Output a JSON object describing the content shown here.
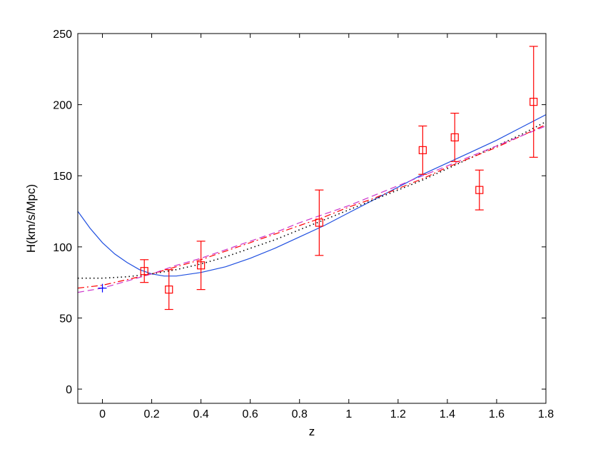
{
  "chart_data": {
    "type": "line",
    "title": "",
    "xlabel": "z",
    "ylabel": "H(km/s/Mpc)",
    "xlim": [
      -0.1,
      1.8
    ],
    "ylim": [
      -10,
      250
    ],
    "x_ticks": [
      0,
      0.2,
      0.4,
      0.6,
      0.8,
      1,
      1.2,
      1.4,
      1.6,
      1.8
    ],
    "x_tick_labels": [
      "0",
      "0.2",
      "0.4",
      "0.6",
      "0.8",
      "1",
      "1.2",
      "1.4",
      "1.6",
      "1.8"
    ],
    "y_ticks": [
      0,
      50,
      100,
      150,
      200,
      250
    ],
    "y_tick_labels": [
      "0",
      "50",
      "100",
      "150",
      "200",
      "250"
    ],
    "grid": false,
    "legend": "none",
    "observations": {
      "color": "#ff0000",
      "marker": "square",
      "points": [
        {
          "z": 0.17,
          "H": 83,
          "err": 8
        },
        {
          "z": 0.27,
          "H": 70,
          "err": 14
        },
        {
          "z": 0.4,
          "H": 87,
          "err": 17
        },
        {
          "z": 0.88,
          "H": 117,
          "err": 23
        },
        {
          "z": 1.3,
          "H": 168,
          "err": 17
        },
        {
          "z": 1.43,
          "H": 177,
          "err": 17
        },
        {
          "z": 1.53,
          "H": 140,
          "err": 14
        },
        {
          "z": 1.75,
          "H": 202,
          "err": 39
        }
      ]
    },
    "reference_point": {
      "z": 0,
      "H": 71,
      "color": "#0000ff",
      "marker": "plus"
    },
    "series": [
      {
        "style": "solid",
        "color": "#1f4fe0",
        "x": [
          -0.1,
          -0.05,
          0,
          0.05,
          0.1,
          0.15,
          0.2,
          0.25,
          0.3,
          0.4,
          0.5,
          0.6,
          0.7,
          0.8,
          0.9,
          1.0,
          1.1,
          1.2,
          1.3,
          1.4,
          1.5,
          1.6,
          1.7,
          1.8
        ],
        "y": [
          125,
          113,
          103,
          95,
          89,
          84,
          81,
          79.5,
          79.5,
          82,
          86,
          92,
          99,
          107,
          115,
          124,
          133,
          142,
          151,
          159,
          167,
          175,
          184,
          193
        ]
      },
      {
        "style": "dotted",
        "color": "#000000",
        "x": [
          -0.1,
          0,
          0.1,
          0.2,
          0.3,
          0.4,
          0.5,
          0.6,
          0.7,
          0.8,
          0.9,
          1.0,
          1.1,
          1.2,
          1.3,
          1.4,
          1.5,
          1.6,
          1.7,
          1.8
        ],
        "y": [
          78,
          78,
          79,
          81,
          84,
          88,
          93,
          99,
          105,
          112,
          119,
          126,
          133,
          140,
          147,
          155,
          163,
          171,
          179,
          188
        ]
      },
      {
        "style": "dash-dot",
        "color": "#ff0000",
        "x": [
          -0.1,
          0,
          0.1,
          0.2,
          0.3,
          0.4,
          0.5,
          0.6,
          0.7,
          0.8,
          0.9,
          1.0,
          1.1,
          1.2,
          1.3,
          1.4,
          1.5,
          1.6,
          1.7,
          1.8
        ],
        "y": [
          71,
          73,
          77,
          81,
          86,
          91,
          97,
          103,
          109,
          115,
          121,
          128,
          134,
          141,
          148,
          156,
          163,
          170,
          178,
          186
        ]
      },
      {
        "style": "dashed",
        "color": "#cc33cc",
        "x": [
          -0.1,
          0,
          0.1,
          0.2,
          0.3,
          0.4,
          0.5,
          0.6,
          0.7,
          0.8,
          0.9,
          1.0,
          1.1,
          1.2,
          1.3,
          1.4,
          1.5,
          1.6,
          1.7,
          1.8
        ],
        "y": [
          68,
          71,
          76,
          81,
          87,
          92,
          98,
          104,
          110,
          117,
          123,
          129,
          136,
          143,
          150,
          157,
          164,
          171,
          178,
          185
        ]
      }
    ]
  }
}
